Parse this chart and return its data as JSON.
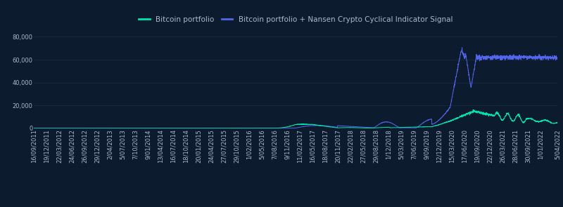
{
  "background_color": "#0d1b2e",
  "grid_color": "#1a2d4a",
  "text_color": "#aabbcc",
  "line1_color": "#00e5b0",
  "line2_color": "#5566ee",
  "legend_label1": "Bitcoin portfolio",
  "legend_label2": "Bitcoin portfolio + Nansen Crypto Cyclical Indicator Signal",
  "ylim": [
    0,
    85000
  ],
  "yticks": [
    0,
    20000,
    40000,
    60000,
    80000
  ],
  "ytick_labels": [
    "0",
    "20,000",
    "40,000",
    "60,000",
    "80,000"
  ],
  "tick_fontsize": 6.0,
  "legend_fontsize": 7.5
}
